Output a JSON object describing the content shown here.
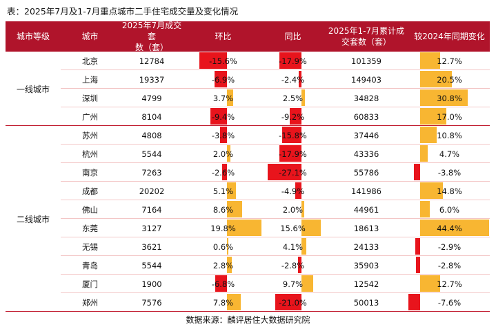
{
  "title": "表：2025年7月及1-7月重点城市二手住宅成交量及变化情况",
  "headers": {
    "tier": "城市等级",
    "city": "城市",
    "july": "2025年7月成交套\n数（套）",
    "mom": "环比",
    "yoy": "同比",
    "ytd": "2025年1-7月累计成\n交套数（套）",
    "vs2024": "较2024年同期变化"
  },
  "groups": [
    {
      "label": "一线城市",
      "rows": [
        0,
        1,
        2,
        3
      ]
    },
    {
      "label": "二线城市",
      "rows": [
        4,
        5,
        6,
        7,
        8,
        9,
        10,
        11,
        12,
        13
      ]
    }
  ],
  "rows": [
    {
      "city": "北京",
      "july": "12784",
      "mom": -15.6,
      "mom_label": "-15.6%",
      "yoy": -17.9,
      "yoy_label": "-17.9%",
      "ytd": "101359",
      "vs": 12.7,
      "vs_label": "12.7%"
    },
    {
      "city": "上海",
      "july": "19337",
      "mom": -6.9,
      "mom_label": "-6.9%",
      "yoy": -2.4,
      "yoy_label": "-2.4%",
      "ytd": "149403",
      "vs": 20.5,
      "vs_label": "20.5%"
    },
    {
      "city": "深圳",
      "july": "4799",
      "mom": 3.7,
      "mom_label": "3.7%",
      "yoy": 2.5,
      "yoy_label": "2.5%",
      "ytd": "34828",
      "vs": 30.8,
      "vs_label": "30.8%"
    },
    {
      "city": "广州",
      "july": "8104",
      "mom": -9.4,
      "mom_label": "-9.4%",
      "yoy": -9.2,
      "yoy_label": "-9.2%",
      "ytd": "60833",
      "vs": 17.0,
      "vs_label": "17.0%"
    },
    {
      "city": "苏州",
      "july": "4808",
      "mom": -3.8,
      "mom_label": "-3.8%",
      "yoy": -15.8,
      "yoy_label": "-15.8%",
      "ytd": "37446",
      "vs": 10.8,
      "vs_label": "10.8%"
    },
    {
      "city": "杭州",
      "july": "5544",
      "mom": 2.0,
      "mom_label": "2.0%",
      "yoy": -17.9,
      "yoy_label": "-17.9%",
      "ytd": "43336",
      "vs": 4.7,
      "vs_label": "4.7%"
    },
    {
      "city": "南京",
      "july": "7263",
      "mom": -2.6,
      "mom_label": "-2.6%",
      "yoy": -27.1,
      "yoy_label": "-27.1%",
      "ytd": "55786",
      "vs": -3.8,
      "vs_label": "-3.8%"
    },
    {
      "city": "成都",
      "july": "20202",
      "mom": 5.1,
      "mom_label": "5.1%",
      "yoy": -4.9,
      "yoy_label": "-4.9%",
      "ytd": "141986",
      "vs": 14.8,
      "vs_label": "14.8%"
    },
    {
      "city": "佛山",
      "july": "7164",
      "mom": 8.6,
      "mom_label": "8.6%",
      "yoy": 2.0,
      "yoy_label": "2.0%",
      "ytd": "44961",
      "vs": 6.0,
      "vs_label": "6.0%"
    },
    {
      "city": "东莞",
      "july": "3127",
      "mom": 19.8,
      "mom_label": "19.8%",
      "yoy": 15.6,
      "yoy_label": "15.6%",
      "ytd": "18613",
      "vs": 44.4,
      "vs_label": "44.4%"
    },
    {
      "city": "无锡",
      "july": "3621",
      "mom": 0.6,
      "mom_label": "0.6%",
      "yoy": 4.1,
      "yoy_label": "4.1%",
      "ytd": "24133",
      "vs": -2.9,
      "vs_label": "-2.9%"
    },
    {
      "city": "青岛",
      "july": "5544",
      "mom": 2.8,
      "mom_label": "2.8%",
      "yoy": -2.8,
      "yoy_label": "-2.8%",
      "ytd": "35903",
      "vs": -2.8,
      "vs_label": "-2.8%"
    },
    {
      "city": "厦门",
      "july": "1900",
      "mom": -6.8,
      "mom_label": "-6.8%",
      "yoy": 9.7,
      "yoy_label": "9.7%",
      "ytd": "12542",
      "vs": 12.7,
      "vs_label": "12.7%"
    },
    {
      "city": "郑州",
      "july": "7576",
      "mom": 7.8,
      "mom_label": "7.8%",
      "yoy": -21.0,
      "yoy_label": "-21.0%",
      "ytd": "50013",
      "vs": -7.6,
      "vs_label": "-7.6%"
    }
  ],
  "colors": {
    "header_bg": "#b0142b",
    "negative": "#e8141c",
    "positive": "#f8b632",
    "row_line": "#f3c6c6",
    "group_line": "#c0182c"
  },
  "footer": "数据来源：麟评居住大数据研究院"
}
